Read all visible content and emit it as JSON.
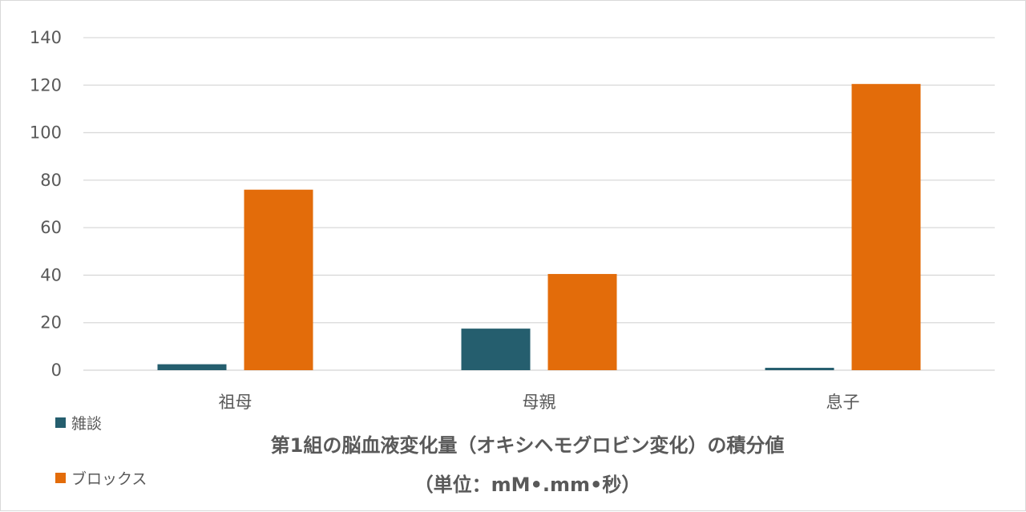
{
  "chart_data": {
    "type": "bar",
    "title": "第1組の脳血液変化量（オキシヘモグロビン変化）の積分値",
    "subtitle": "（単位：mM•.mm•秒）",
    "categories": [
      "祖母",
      "母親",
      "息子"
    ],
    "series": [
      {
        "name": "雑談",
        "values": [
          2.5,
          17.5,
          1
        ],
        "color": "#255e6e"
      },
      {
        "name": "ブロックス",
        "values": [
          76,
          40.5,
          120.5
        ],
        "color": "#e36c0a"
      }
    ],
    "yticks": [
      0,
      20,
      40,
      60,
      80,
      100,
      120,
      140
    ],
    "ylim": [
      0,
      140
    ],
    "grid": true,
    "legend": "bottom-left"
  }
}
